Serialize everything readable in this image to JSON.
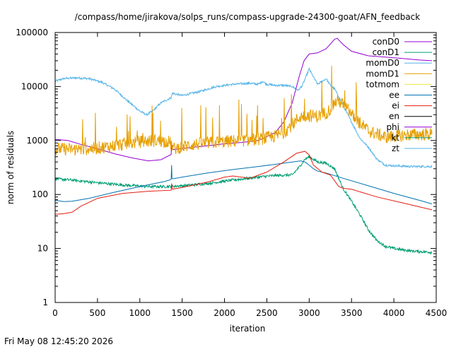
{
  "footer": {
    "timestamp": "Fri May 08 12:45:20 2026"
  },
  "chart_data": {
    "type": "line",
    "title": "/compass/home/jirakova/solps_runs/compass-upgrade-24300-goat/AFN_feedback",
    "xlabel": "iteration",
    "ylabel": "norm of residuals",
    "xlim": [
      0,
      4500
    ],
    "ylim": [
      1,
      100000
    ],
    "yscale": "log",
    "grid": false,
    "legend_position": "top-right",
    "x_ticks": [
      0,
      500,
      1000,
      1500,
      2000,
      2500,
      3000,
      3500,
      4000,
      4500
    ],
    "x_tick_labels": [
      "0",
      "500",
      "1000",
      "1500",
      "2000",
      "2500",
      "3000",
      "3500",
      "4000",
      "4500"
    ],
    "y_ticks": [
      1,
      10,
      100,
      1000,
      10000,
      100000
    ],
    "y_tick_labels": [
      "1",
      "10",
      "100",
      "1000",
      "10000",
      "100000"
    ],
    "series": [
      {
        "name": "conD0",
        "color": "#9400d3",
        "noise": 0,
        "x": [
          0,
          150,
          300,
          500,
          700,
          900,
          1100,
          1250,
          1370,
          1375,
          1385,
          1400,
          1600,
          1800,
          2000,
          2200,
          2400,
          2600,
          2700,
          2800,
          2880,
          2940,
          3000,
          3100,
          3200,
          3300,
          3330,
          3400,
          3500,
          3700,
          3900,
          4100,
          4300,
          4450
        ],
        "y": [
          1050,
          1000,
          850,
          700,
          570,
          480,
          420,
          440,
          550,
          900,
          700,
          680,
          740,
          800,
          870,
          920,
          1000,
          1400,
          2200,
          5000,
          15000,
          30000,
          40000,
          42000,
          50000,
          75000,
          78000,
          60000,
          45000,
          37000,
          35000,
          33000,
          31000,
          30000
        ]
      },
      {
        "name": "conD1",
        "color": "#009e73",
        "noise": 0.025,
        "x": [
          0,
          200,
          500,
          800,
          1100,
          1300,
          1500,
          1800,
          2100,
          2400,
          2600,
          2800,
          2880,
          2950,
          3000,
          3100,
          3200,
          3300,
          3400,
          3500,
          3600,
          3700,
          3800,
          3900,
          4000,
          4200,
          4450
        ],
        "y": [
          195,
          185,
          165,
          150,
          140,
          140,
          145,
          160,
          185,
          210,
          225,
          230,
          320,
          450,
          500,
          400,
          380,
          300,
          130,
          75,
          42,
          22,
          14,
          11,
          10,
          9,
          8.5
        ]
      },
      {
        "name": "momD0",
        "color": "#56b4e9",
        "noise": 0.02,
        "x": [
          0,
          100,
          250,
          400,
          550,
          700,
          850,
          1000,
          1080,
          1150,
          1250,
          1370,
          1385,
          1500,
          1700,
          1900,
          2100,
          2300,
          2400,
          2450,
          2500,
          2600,
          2700,
          2800,
          2870,
          2920,
          3000,
          3050,
          3100,
          3200,
          3250,
          3300,
          3400,
          3500,
          3600,
          3700,
          3800,
          3900,
          4000,
          4200,
          4450
        ],
        "y": [
          12500,
          14000,
          14500,
          14000,
          12000,
          9000,
          5500,
          3500,
          3000,
          3500,
          5000,
          6200,
          7500,
          6800,
          8000,
          10000,
          11000,
          11500,
          11000,
          12500,
          11000,
          10500,
          10500,
          10000,
          8500,
          10500,
          21000,
          15000,
          11000,
          14000,
          10500,
          9000,
          4500,
          2200,
          1100,
          750,
          450,
          350,
          340,
          330,
          330
        ]
      },
      {
        "name": "momD1",
        "color": "#e69f00",
        "noise": 0.12,
        "spikes": true,
        "x": [
          0,
          200,
          400,
          600,
          800,
          1000,
          1200,
          1350,
          1400,
          1600,
          1800,
          2000,
          2200,
          2400,
          2600,
          2700,
          2800,
          2900,
          3000,
          3100,
          3200,
          3250,
          3300,
          3350,
          3450,
          3550,
          3700,
          3900,
          4100,
          4300,
          4450
        ],
        "y": [
          700,
          690,
          700,
          760,
          850,
          950,
          1000,
          950,
          700,
          830,
          900,
          950,
          1000,
          1050,
          1200,
          1400,
          2000,
          2800,
          2900,
          2800,
          3300,
          3800,
          5000,
          5500,
          3800,
          2500,
          1500,
          1150,
          1250,
          1300,
          1300
        ]
      },
      {
        "name": "totmom",
        "color": "#f0e442",
        "noise": 0,
        "x": [],
        "y": []
      },
      {
        "name": "ee",
        "color": "#0072b2",
        "noise": 0,
        "x": [
          0,
          100,
          200,
          400,
          700,
          1000,
          1300,
          1370,
          1375,
          1380,
          1390,
          1500,
          1800,
          2100,
          2400,
          2700,
          2900,
          2950,
          3000,
          3050,
          3100,
          3200,
          3400,
          3700,
          4000,
          4300,
          4450
        ],
        "y": [
          78,
          74,
          75,
          85,
          110,
          140,
          175,
          190,
          350,
          200,
          195,
          210,
          250,
          290,
          330,
          380,
          420,
          400,
          350,
          300,
          270,
          250,
          200,
          145,
          105,
          78,
          67
        ]
      },
      {
        "name": "ei",
        "color": "#e51e10",
        "noise": 0,
        "x": [
          0,
          100,
          200,
          300,
          500,
          800,
          1100,
          1370,
          1375,
          1385,
          1500,
          1800,
          2000,
          2100,
          2200,
          2300,
          2500,
          2700,
          2850,
          2950,
          3000,
          3050,
          3150,
          3250,
          3350,
          3400,
          3500,
          3800,
          4100,
          4450
        ],
        "y": [
          43,
          44,
          47,
          60,
          85,
          105,
          115,
          120,
          160,
          125,
          135,
          170,
          210,
          220,
          210,
          200,
          260,
          400,
          580,
          630,
          540,
          350,
          260,
          230,
          140,
          130,
          125,
          90,
          70,
          52
        ]
      },
      {
        "name": "en",
        "color": "#000000",
        "noise": 0,
        "x": [],
        "y": []
      },
      {
        "name": "phi",
        "color": "#9400d3",
        "noise": 0,
        "x": [],
        "y": []
      },
      {
        "name": "kt",
        "color": "#009e73",
        "noise": 0,
        "x": [],
        "y": []
      },
      {
        "name": "zt",
        "color": "#56b4e9",
        "noise": 0,
        "x": [],
        "y": []
      }
    ]
  }
}
